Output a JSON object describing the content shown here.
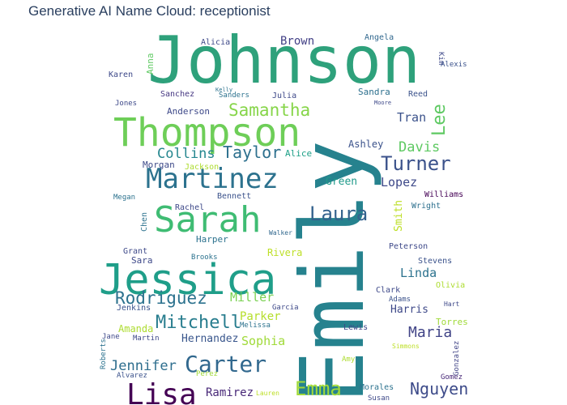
{
  "title": "Generative AI Name Cloud: receptionist",
  "words": [
    {
      "text": "Johnson",
      "color": "#2ea17b"
    },
    {
      "text": "Emily",
      "color": "#26828e"
    },
    {
      "text": "Thompson",
      "color": "#6ece58"
    },
    {
      "text": "Jessica",
      "color": "#1f9e89"
    },
    {
      "text": "Sarah",
      "color": "#3fbc73"
    },
    {
      "text": "Martinez",
      "color": "#2c728e"
    },
    {
      "text": "Samantha",
      "color": "#86d549"
    },
    {
      "text": "Lisa",
      "color": "#440154"
    },
    {
      "text": "Carter",
      "color": "#31688e"
    },
    {
      "text": "Laura",
      "color": "#33628d"
    },
    {
      "text": "Turner",
      "color": "#3b528b"
    },
    {
      "text": "Rodriguez",
      "color": "#2c728e"
    },
    {
      "text": "Mitchell",
      "color": "#287d8e"
    },
    {
      "text": "Emma",
      "color": "#a0da39"
    },
    {
      "text": "Nguyen",
      "color": "#3e4c8a"
    },
    {
      "text": "Lee",
      "color": "#5ec962"
    },
    {
      "text": "Taylor",
      "color": "#2d708e"
    },
    {
      "text": "Collins",
      "color": "#24868e"
    },
    {
      "text": "Davis",
      "color": "#5ec962"
    },
    {
      "text": "Brown",
      "color": "#424086"
    },
    {
      "text": "Jennifer",
      "color": "#2e6e8e"
    },
    {
      "text": "Ramirez",
      "color": "#482878"
    },
    {
      "text": "Tran",
      "color": "#3b528b"
    },
    {
      "text": "Maria",
      "color": "#414487"
    },
    {
      "text": "Sophia",
      "color": "#a0da39"
    },
    {
      "text": "Miller",
      "color": "#7ad151"
    },
    {
      "text": "Parker",
      "color": "#b5de2b"
    },
    {
      "text": "Hernandez",
      "color": "#39568c"
    },
    {
      "text": "Lopez",
      "color": "#3e4989"
    },
    {
      "text": "Green",
      "color": "#1f9a8a"
    },
    {
      "text": "Ashley",
      "color": "#3b528b"
    },
    {
      "text": "Harris",
      "color": "#3e4989"
    },
    {
      "text": "Linda",
      "color": "#2c728e"
    },
    {
      "text": "Rivera",
      "color": "#bddf26"
    },
    {
      "text": "Smith",
      "color": "#bddf26"
    },
    {
      "text": "Amanda",
      "color": "#addc30"
    },
    {
      "text": "Anderson",
      "color": "#3e4989"
    },
    {
      "text": "Alice",
      "color": "#1fa088"
    },
    {
      "text": "Sanchez",
      "color": "#453781"
    },
    {
      "text": "Sandra",
      "color": "#2d708e"
    },
    {
      "text": "Jackson",
      "color": "#addc30"
    },
    {
      "text": "Morgan",
      "color": "#3e4a89"
    },
    {
      "text": "Angela",
      "color": "#31688e"
    },
    {
      "text": "Alicia",
      "color": "#3e4989"
    },
    {
      "text": "Anna",
      "color": "#5ec962"
    },
    {
      "text": "Bennett",
      "color": "#3b528b"
    },
    {
      "text": "Rachel",
      "color": "#3e4989"
    },
    {
      "text": "Harper",
      "color": "#2c728e"
    },
    {
      "text": "Williams",
      "color": "#440154"
    },
    {
      "text": "Wright",
      "color": "#2d708e"
    },
    {
      "text": "Peterson",
      "color": "#3e4989"
    },
    {
      "text": "Stevens",
      "color": "#3b528b"
    },
    {
      "text": "Torres",
      "color": "#a0da39"
    },
    {
      "text": "Gonzalez",
      "color": "#414487"
    },
    {
      "text": "Morales",
      "color": "#2c728e"
    },
    {
      "text": "Gomez",
      "color": "#482878"
    },
    {
      "text": "Reed",
      "color": "#3b528b"
    },
    {
      "text": "Julia",
      "color": "#3e4989"
    },
    {
      "text": "Kim",
      "color": "#3e4989"
    },
    {
      "text": "Alexis",
      "color": "#3b528b"
    },
    {
      "text": "Karen",
      "color": "#3e4989"
    },
    {
      "text": "Jones",
      "color": "#3e4989"
    },
    {
      "text": "Sanders",
      "color": "#2c728e"
    },
    {
      "text": "Megan",
      "color": "#2c728e"
    },
    {
      "text": "Chen",
      "color": "#2c728e"
    },
    {
      "text": "Grant",
      "color": "#3e4989"
    },
    {
      "text": "Sara",
      "color": "#3e4989"
    },
    {
      "text": "Brooks",
      "color": "#2c728e"
    },
    {
      "text": "Walker",
      "color": "#31688e"
    },
    {
      "text": "Jenkins",
      "color": "#3b528b"
    },
    {
      "text": "Jane",
      "color": "#3e4989"
    },
    {
      "text": "Martin",
      "color": "#3e4989"
    },
    {
      "text": "Alvarez",
      "color": "#3b528b"
    },
    {
      "text": "Perez",
      "color": "#a0da39"
    },
    {
      "text": "Lauren",
      "color": "#bddf26"
    },
    {
      "text": "Susan",
      "color": "#3e4989"
    },
    {
      "text": "Garcia",
      "color": "#3e4989"
    },
    {
      "text": "Melissa",
      "color": "#2c728e"
    },
    {
      "text": "Lewis",
      "color": "#3e4989"
    },
    {
      "text": "Amy",
      "color": "#addc30"
    },
    {
      "text": "Clark",
      "color": "#3e4989"
    },
    {
      "text": "Adams",
      "color": "#3b528b"
    },
    {
      "text": "Olivia",
      "color": "#addc30"
    },
    {
      "text": "Hart",
      "color": "#3e4989"
    },
    {
      "text": "Roberts",
      "color": "#2c728e"
    },
    {
      "text": "Simmons",
      "color": "#bddf26"
    },
    {
      "text": "Kelly",
      "color": "#2c728e"
    },
    {
      "text": "Moore",
      "color": "#3e4989"
    }
  ]
}
